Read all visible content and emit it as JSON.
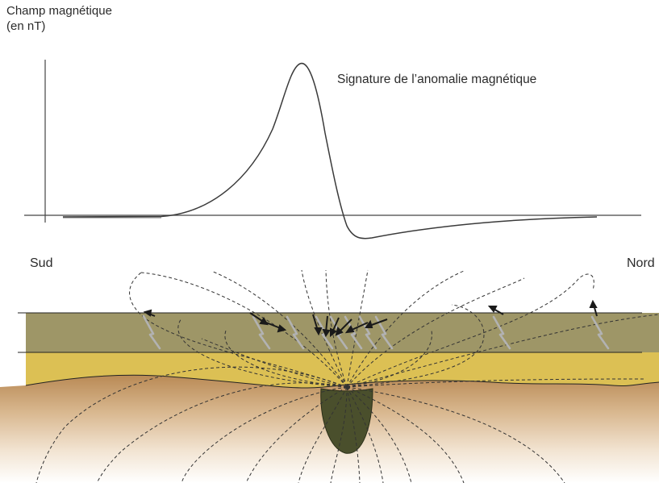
{
  "axis": {
    "ylabel_line1": "Champ magnétique",
    "ylabel_line2": "(en nT)"
  },
  "curve": {
    "label": "Signature de l’anomalie magnétique"
  },
  "directions": {
    "south": "Sud",
    "north": "Nord"
  },
  "colors": {
    "top_layer": "#9e9667",
    "middle_layer": "#dcc054",
    "basement_top": "#b98a55",
    "basement_bottom": "#fbf6ef",
    "anomaly_body": "#4a4f2c",
    "field_lines": "#333333",
    "magnetization_arrows": "#b2b2b2",
    "induced_arrows": "#1a1a1a"
  },
  "icons": {
    "magnetization": "grey-lightning-arrow",
    "field_vector": "black-arrow"
  }
}
